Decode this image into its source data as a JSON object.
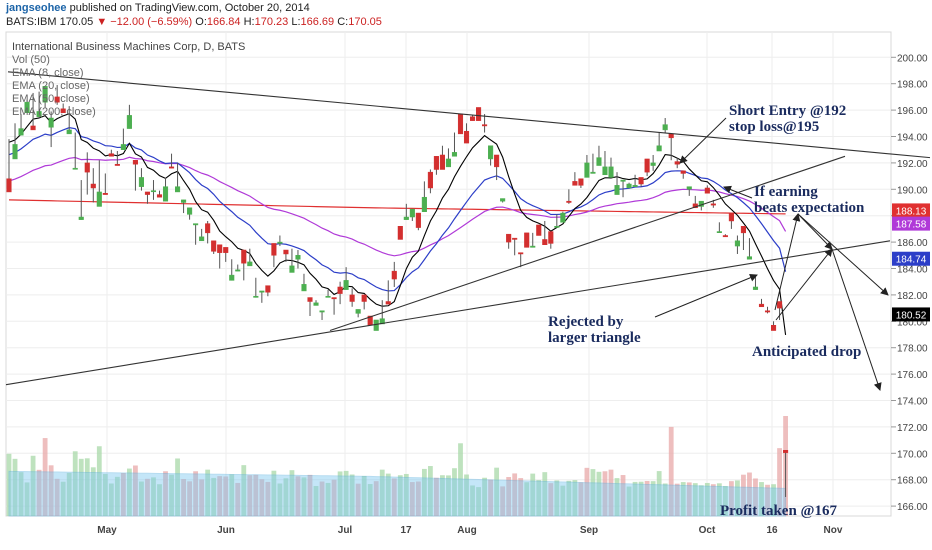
{
  "header": {
    "username": "jangseohee",
    "published_text": "published on TradingView.com, October 20, 2014",
    "symbol": "BATS:IBM",
    "last": "170.05",
    "change": "▼ −12.00 (−6.59%)",
    "o_label": "O:",
    "open": "166.84",
    "h_label": "H:",
    "high": "170.23",
    "l_label": "L:",
    "low": "166.69",
    "c_label": "C:",
    "close": "170.05"
  },
  "legend": [
    "International Business Machines Corp, D, BATS",
    "Vol (50)",
    "EMA (8, close)",
    "EMA (20, close)",
    "EMA (50, close)",
    "EMA (200, close)"
  ],
  "colors": {
    "up": "#4caf50",
    "down": "#d32f2f",
    "ema8": "#000000",
    "ema20": "#2c3ec8",
    "ema50": "#b03ad8",
    "ema200": "#e03030",
    "volume_ma": "#7ec8f0",
    "annotation": "#1a2b5e"
  },
  "chart_data": {
    "type": "candlestick",
    "ylim": [
      165,
      201
    ],
    "y_ticks": [
      166,
      168,
      170,
      172,
      174,
      176,
      178,
      180,
      182,
      184,
      186,
      188,
      190,
      192,
      194,
      196,
      198,
      200
    ],
    "x_labels": [
      "May",
      "Jun",
      "Jul",
      "17",
      "Aug",
      "Sep",
      "Oct",
      "16",
      "Nov"
    ],
    "price_badges": [
      {
        "value": 188.13,
        "label": "188.13",
        "color": "#e03030"
      },
      {
        "value": 187.58,
        "label": "187.58",
        "color": "#b03ad8"
      },
      {
        "value": 184.74,
        "label": "184.74",
        "color": "#2c3ec8"
      },
      {
        "value": 180.52,
        "label": "180.52",
        "color": "#000000"
      }
    ],
    "candles": [
      [
        189.8,
        190.8,
        192.2,
        193.8
      ],
      [
        193.4,
        192.3,
        195,
        194.3
      ],
      [
        194.6,
        194.1,
        195.2,
        195.7
      ],
      [
        196.6,
        195.8,
        196.3,
        196.8
      ],
      [
        194.5,
        194.8,
        196.7,
        197.3
      ],
      [
        195.9,
        195.5,
        197.4,
        195.7
      ],
      [
        197.8,
        196.6,
        197.3,
        196.2
      ],
      [
        195.4,
        194.7,
        195.9,
        193.2
      ],
      [
        196.6,
        197,
        197.9,
        196.4
      ],
      [
        195.8,
        196.1,
        196.5,
        196.3
      ],
      [
        194.5,
        194.2,
        194.8,
        196.3
      ],
      [
        191.6,
        191.6,
        194.3,
        193.9
      ],
      [
        187.9,
        187.7,
        190.7,
        188.3
      ],
      [
        191.3,
        192,
        189.6,
        192.8
      ],
      [
        190.1,
        190.4,
        189,
        191.6
      ],
      [
        189.8,
        188.7,
        191.9,
        192.2
      ],
      [
        189.6,
        189.7,
        190.3,
        191.2
      ],
      [
        192.5,
        192.7,
        192.5,
        193
      ],
      [
        191.8,
        191.9,
        192.9,
        192.2
      ],
      [
        193.4,
        193,
        194.6,
        193.3
      ],
      [
        195.6,
        194.6,
        196.4,
        196.2
      ],
      [
        191.9,
        192.2,
        190.9,
        189.9
      ],
      [
        190.9,
        190.2,
        189.9,
        191.6
      ],
      [
        189.6,
        189.8,
        189.2,
        188.9
      ],
      [
        189.9,
        189.9,
        189.2,
        190.7
      ],
      [
        189.4,
        189.6,
        189.9,
        189.6
      ],
      [
        190.2,
        189.1,
        190.9,
        190.1
      ],
      [
        191.6,
        191.7,
        192.7,
        192.4
      ],
      [
        190.2,
        189.8,
        192,
        192
      ],
      [
        189.2,
        189,
        188.6,
        188.2
      ],
      [
        188.6,
        188.1,
        187.9,
        187.7
      ],
      [
        187.4,
        187.3,
        186.4,
        185.8
      ],
      [
        186.4,
        186.1,
        187,
        186.3
      ],
      [
        186.7,
        187.4,
        185.9,
        187.6
      ],
      [
        185.3,
        186.1,
        185.1,
        185.5
      ],
      [
        185.2,
        185.8,
        185.2,
        184
      ],
      [
        185.2,
        185.6,
        184.5,
        184.9
      ],
      [
        183.5,
        183.1,
        183.9,
        184.7
      ],
      [
        183.9,
        183.8,
        184.3,
        183.8
      ],
      [
        184.4,
        185.4,
        183.1,
        184.8
      ],
      [
        184.5,
        184.2,
        185.5,
        184.3
      ],
      [
        181.9,
        181.9,
        183.3,
        181.8
      ],
      [
        182.3,
        182.2,
        181.4,
        182
      ],
      [
        182.2,
        182.7,
        182.2,
        181.9
      ],
      [
        185,
        185.9,
        184.1,
        185.2
      ],
      [
        186,
        185.9,
        185.7,
        186.5
      ],
      [
        185.1,
        185.4,
        184.5,
        185.4
      ],
      [
        184.2,
        183.7,
        185.5,
        184.5
      ],
      [
        185,
        184.7,
        185.4,
        184
      ],
      [
        182.8,
        182.3,
        183,
        183.6
      ],
      [
        181.5,
        181.8,
        180.4,
        181.4
      ],
      [
        181.4,
        181.2,
        181.3,
        181.6
      ],
      [
        180.8,
        180.7,
        180.1,
        180.6
      ],
      [
        181.9,
        181.9,
        182.4,
        182
      ],
      [
        181.7,
        181.8,
        181.6,
        180.5
      ],
      [
        182.1,
        182.6,
        181.3,
        183
      ],
      [
        183.1,
        182.4,
        183.7,
        184.1
      ],
      [
        181.5,
        182,
        181.1,
        182.5
      ],
      [
        180.9,
        180.6,
        180.3,
        180.6
      ],
      [
        181.5,
        182,
        180.9,
        181.9
      ],
      [
        179.7,
        180.4,
        180.2,
        180.1
      ],
      [
        180.1,
        179.3,
        180,
        180
      ],
      [
        180.2,
        179.8,
        181.6,
        180.6
      ],
      [
        181.3,
        181.5,
        183.1,
        181.3
      ],
      [
        183.2,
        183.8,
        184.5,
        182.6
      ],
      [
        186.2,
        187.2,
        186.2,
        186.9
      ],
      [
        187.9,
        187.7,
        188.9,
        188.5
      ],
      [
        188.5,
        187.9,
        187.6,
        187.9
      ],
      [
        187.1,
        188.2,
        187.6,
        186.9
      ],
      [
        189.4,
        188.3,
        189.7,
        190.6
      ],
      [
        190.1,
        191.3,
        189.7,
        191.5
      ],
      [
        191.5,
        192.5,
        191.6,
        191.1
      ],
      [
        191.5,
        192.6,
        193.3,
        192.7
      ],
      [
        192.3,
        191.7,
        193.1,
        192.3
      ],
      [
        192.8,
        192.5,
        193.8,
        194.3
      ],
      [
        194.2,
        195.7,
        194.8,
        194.5
      ],
      [
        193.5,
        194.4,
        193.8,
        195
      ],
      [
        195.2,
        195.5,
        195.6,
        195.5
      ],
      [
        195.2,
        196.2,
        196.1,
        195.2
      ],
      [
        194.8,
        194.9,
        194.3,
        195.7
      ],
      [
        193.3,
        192.3,
        191.8,
        192.6
      ],
      [
        191.7,
        192.6,
        190.7,
        192.3
      ],
      [
        189.3,
        189.1,
        189.1,
        189
      ],
      [
        186,
        186.6,
        185.5,
        185.8
      ],
      [
        186.2,
        186.3,
        185.4,
        185
      ],
      [
        185.1,
        185.2,
        184.7,
        184.1
      ],
      [
        185.6,
        186.7,
        186.3,
        186
      ],
      [
        185.7,
        185.6,
        186.6,
        186.7
      ],
      [
        186.5,
        187.3,
        186.6,
        186.8
      ],
      [
        185.8,
        186.2,
        187.6,
        186.4
      ],
      [
        185.9,
        186.8,
        186.5,
        185.5
      ],
      [
        187.2,
        187.2,
        187.5,
        188.1
      ],
      [
        188.2,
        187.5,
        187.7,
        188.3
      ],
      [
        189,
        189.1,
        188.9,
        190
      ],
      [
        190.3,
        190.6,
        191.3,
        190.6
      ],
      [
        190.3,
        190.8,
        190.3,
        190.1
      ],
      [
        192,
        190.9,
        192.6,
        191.1
      ],
      [
        191.3,
        191.2,
        192.7,
        192.3
      ],
      [
        192.4,
        191.8,
        193.3,
        192.9
      ],
      [
        191.7,
        191.1,
        192.9,
        191.6
      ],
      [
        191.7,
        190.9,
        192.4,
        190.8
      ],
      [
        190.3,
        189.6,
        190.1,
        191.3
      ],
      [
        190.7,
        190.6,
        189.4,
        190.3
      ],
      [
        190.4,
        190.1,
        190.2,
        190.5
      ],
      [
        190.3,
        190.2,
        190.4,
        191.1
      ],
      [
        190.4,
        190.9,
        190.2,
        190.4
      ],
      [
        191.3,
        192.3,
        191.7,
        191
      ],
      [
        192,
        191.8,
        191.4,
        192.6
      ],
      [
        193.3,
        192.9,
        194.3,
        194.1
      ],
      [
        194.9,
        194.5,
        194.3,
        195.4
      ],
      [
        193.9,
        194.2,
        192.2,
        192.4
      ],
      [
        191.9,
        192.1,
        192.4,
        191.6
      ],
      [
        191.2,
        191.4,
        190.8,
        191.3
      ],
      [
        190.2,
        190,
        189.8,
        189.5
      ],
      [
        188.6,
        188.9,
        188.9,
        189.5
      ],
      [
        189.1,
        188.7,
        188.4,
        189.1
      ],
      [
        189.7,
        190.1,
        190.3,
        190.3
      ],
      [
        188.8,
        188.9,
        189.2,
        188.6
      ],
      [
        186.8,
        186.8,
        186.7,
        187.5
      ],
      [
        186.4,
        186.5,
        186.4,
        186.6
      ],
      [
        187.6,
        188.2,
        187.8,
        187
      ],
      [
        186.1,
        185.7,
        185.1,
        186.5
      ],
      [
        186.7,
        187.2,
        186.5,
        185.4
      ],
      [
        184.9,
        184.7,
        186.3,
        184.7
      ],
      [
        182.6,
        182.4,
        183.4,
        182.5
      ],
      [
        181.1,
        181.3,
        181.6,
        181.7
      ],
      [
        180.7,
        180.8,
        181.1,
        180.6
      ],
      [
        179.3,
        179.7,
        179.7,
        180
      ],
      [
        181,
        181.5,
        181.5,
        180.1
      ],
      [
        170.05,
        170.23,
        166.69,
        166.84
      ]
    ],
    "ema200_anchor": [
      [
        0,
        189.2
      ],
      [
        60,
        188.6
      ],
      [
        130,
        188.13
      ]
    ],
    "volume_ma_anchor": [
      [
        0,
        0.62
      ],
      [
        60,
        0.55
      ],
      [
        130,
        0.38
      ]
    ],
    "trendlines": [
      {
        "from": [
          8,
          198.9
        ],
        "to": [
          930,
          192.4
        ]
      },
      {
        "from": [
          330,
          179.3
        ],
        "to": [
          845,
          192.5
        ]
      },
      {
        "from": [
          6,
          175.2
        ],
        "to": [
          890,
          186.1
        ]
      }
    ],
    "annotations": [
      {
        "text": "Short Entry @192",
        "color": "#1a2b5e"
      },
      {
        "text": "stop loss@195",
        "color": "#1a2b5e"
      },
      {
        "text": "If earning",
        "color": "#1a2b5e"
      },
      {
        "text": "beats expectation",
        "color": "#1a2b5e"
      },
      {
        "text": "Rejected by",
        "color": "#1a2b5e"
      },
      {
        "text": "larger triangle",
        "color": "#1a2b5e"
      },
      {
        "text": "Anticipated drop",
        "color": "#1a2b5e"
      },
      {
        "text": "Profit taken @167",
        "color": "#1a2b5e"
      }
    ]
  }
}
